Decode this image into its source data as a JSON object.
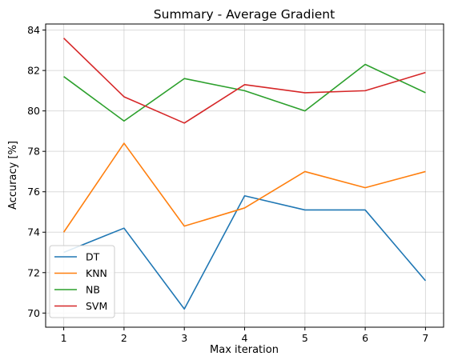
{
  "chart_data": {
    "type": "line",
    "title": "Summary - Average Gradient",
    "xlabel": "Max iteration",
    "ylabel": "Accuracy [%]",
    "x": [
      1,
      2,
      3,
      4,
      5,
      6,
      7
    ],
    "xticks": [
      "1",
      "2",
      "3",
      "4",
      "5",
      "6",
      "7"
    ],
    "yticks": [
      "70",
      "72",
      "74",
      "76",
      "78",
      "80",
      "82",
      "84"
    ],
    "xlim": [
      0.7,
      7.3
    ],
    "ylim": [
      69.3,
      84.3
    ],
    "grid": true,
    "legend_position": "lower-left",
    "series": [
      {
        "name": "DT",
        "color": "#1f77b4",
        "values": [
          73.0,
          74.2,
          70.2,
          75.8,
          75.1,
          75.1,
          71.6
        ]
      },
      {
        "name": "KNN",
        "color": "#ff7f0e",
        "values": [
          74.0,
          78.4,
          74.3,
          75.2,
          77.0,
          76.2,
          77.0
        ]
      },
      {
        "name": "NB",
        "color": "#2ca02c",
        "values": [
          81.7,
          79.5,
          81.6,
          81.0,
          80.0,
          82.3,
          80.9
        ]
      },
      {
        "name": "SVM",
        "color": "#d62728",
        "values": [
          83.6,
          80.7,
          79.4,
          81.3,
          80.9,
          81.0,
          81.9
        ]
      }
    ]
  }
}
